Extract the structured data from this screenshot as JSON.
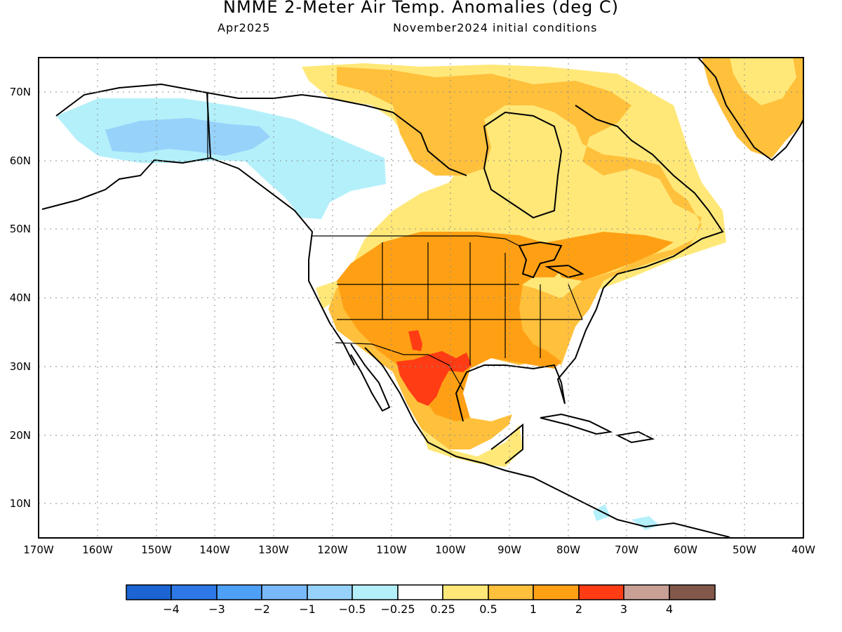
{
  "header": {
    "title": "NMME 2-Meter Air Temp. Anomalies (deg C)",
    "left_subtitle": "Apr2025",
    "right_subtitle": "November2024 initial conditions"
  },
  "map": {
    "lon_range": [
      -170,
      -40
    ],
    "lat_range": [
      5,
      75
    ],
    "lat_labels": [
      "10N",
      "20N",
      "30N",
      "40N",
      "50N",
      "60N",
      "70N"
    ],
    "lon_labels": [
      "170W",
      "160W",
      "150W",
      "140W",
      "130W",
      "120W",
      "110W",
      "100W",
      "90W",
      "80W",
      "70W",
      "60W",
      "50W",
      "40W"
    ],
    "grid": "dotted"
  },
  "colorbar": {
    "bins": [
      {
        "color": "#1b64d2"
      },
      {
        "color": "#2d78e6"
      },
      {
        "color": "#4ea0f5"
      },
      {
        "color": "#78b9fa"
      },
      {
        "color": "#96d2fa"
      },
      {
        "color": "#b4f0fa"
      },
      {
        "color": "#ffffff"
      },
      {
        "color": "#ffe878"
      },
      {
        "color": "#ffc03c"
      },
      {
        "color": "#ffa014"
      },
      {
        "color": "#ff3c14"
      },
      {
        "color": "#c8a096"
      },
      {
        "color": "#82584a"
      }
    ],
    "labels": [
      "−4",
      "−3",
      "−2",
      "−1",
      "−0.5",
      "−0.25",
      "0.25",
      "0.5",
      "1",
      "2",
      "3",
      "4"
    ]
  }
}
